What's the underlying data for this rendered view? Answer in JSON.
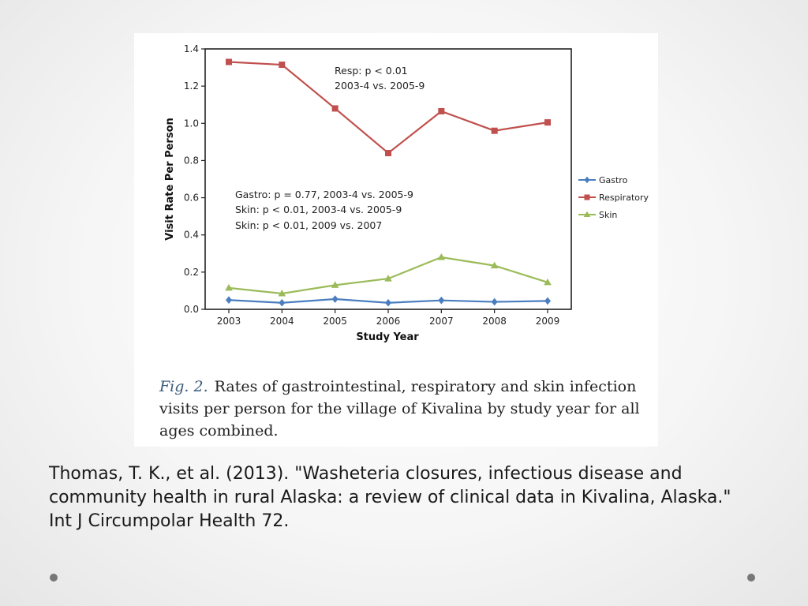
{
  "chart_data": {
    "type": "line",
    "x": [
      "2003",
      "2004",
      "2005",
      "2006",
      "2007",
      "2008",
      "2009"
    ],
    "xlabel": "Study Year",
    "ylabel": "Visit Rate Per Person",
    "ylim": [
      0,
      1.4
    ],
    "yticks": [
      "0.0",
      "0.2",
      "0.4",
      "0.6",
      "0.8",
      "1.0",
      "1.2",
      "1.4"
    ],
    "grid": false,
    "legend_position": "right",
    "series": [
      {
        "name": "Gastro",
        "marker": "diamond",
        "color": "#4a7ebf",
        "values": [
          0.05,
          0.035,
          0.055,
          0.035,
          0.048,
          0.04,
          0.045
        ]
      },
      {
        "name": "Respiratory",
        "marker": "square",
        "color": "#c0504d",
        "values": [
          1.33,
          1.315,
          1.08,
          0.84,
          1.065,
          0.96,
          1.005
        ]
      },
      {
        "name": "Skin",
        "marker": "triangle",
        "color": "#9bbb59",
        "values": [
          0.115,
          0.085,
          0.13,
          0.165,
          0.28,
          0.235,
          0.145
        ]
      }
    ],
    "annotations": [
      {
        "lines": [
          "Resp:  p < 0.01",
          "2003-4 vs. 2005-9"
        ]
      },
      {
        "lines": [
          "Gastro: p = 0.77, 2003-4 vs. 2005-9",
          "Skin: p < 0.01, 2003-4 vs. 2005-9",
          "Skin: p < 0.01, 2009 vs. 2007"
        ]
      }
    ]
  },
  "caption": {
    "label": "Fig. 2.",
    "text": "Rates of gastrointestinal, respiratory and skin infection visits per person for the village of Kivalina by study year for all ages combined."
  },
  "citation": "Thomas, T. K., et al. (2013). \"Washeteria closures, infectious disease and community health in rural Alaska: a review of clinical data in Kivalina, Alaska.\" Int J Circumpolar Health 72.",
  "colors": {
    "dot": "#777777"
  }
}
